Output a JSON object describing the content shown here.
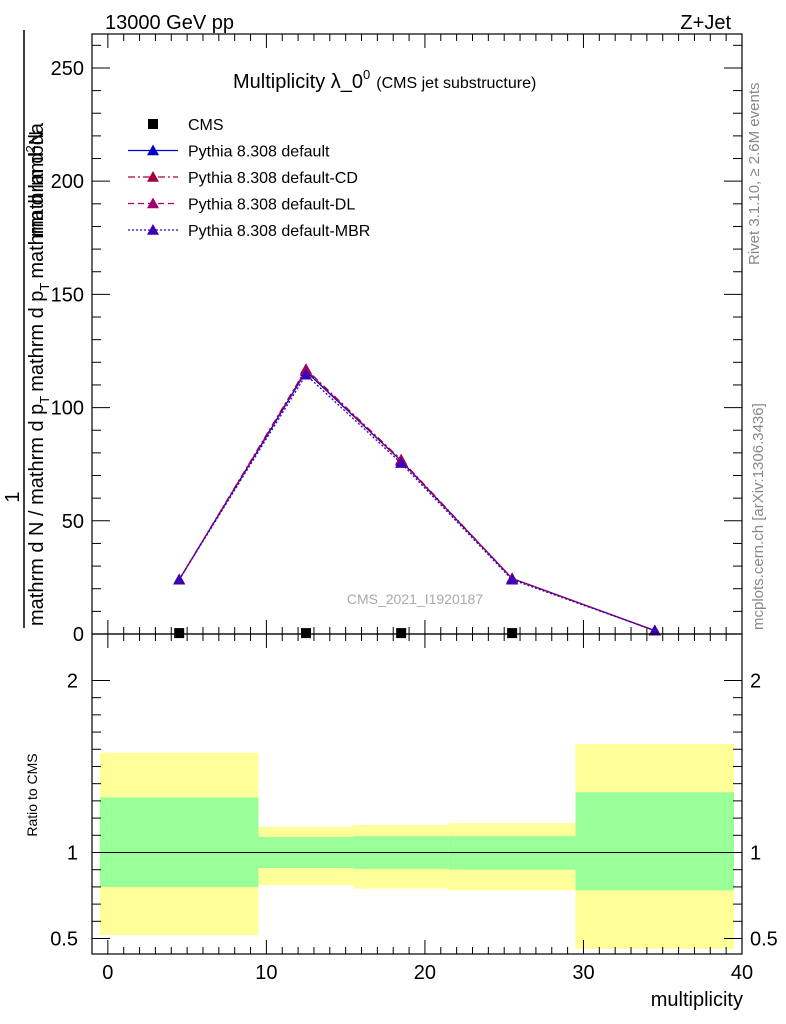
{
  "header": {
    "left": "13000 GeV pp",
    "right": "Z+Jet"
  },
  "side_labels": {
    "rivet": "Rivet 3.1.10, ≥ 2.6M events",
    "mcplots": "mcplots.cern.ch [arXiv:1306.3436]"
  },
  "chart_data": [
    {
      "type": "line",
      "title_main": "Multiplicity λ_0",
      "title_sup": "0",
      "title_sub": "(CMS jet substructure)",
      "ylabel": {
        "numerator": "1",
        "denominator": "mathrm d N / mathrm d p",
        "denominator_sub": "T",
        "rest": "mathrm d p",
        "rest_sub": "T",
        "rest2": "mathrm d lambda",
        "top": "mathrm d",
        "top_sup": "2",
        "top2": "N"
      },
      "watermark": "CMS_2021_I1920187",
      "xlim": [
        -1,
        40
      ],
      "ylim": [
        0,
        265
      ],
      "yticks": [
        0,
        50,
        100,
        150,
        200,
        250
      ],
      "legend_position": "top-left",
      "series": [
        {
          "name": "CMS",
          "style": "marker",
          "color": "#000000",
          "x": [
            4.5,
            12.5,
            18.5,
            25.5
          ],
          "y": [
            0.4,
            0.4,
            0.4,
            0.4
          ]
        },
        {
          "name": "Pythia 8.308 default",
          "style": "solid",
          "color": "#0000cc",
          "x": [
            4.5,
            12.5,
            18.5,
            25.5,
            34.5
          ],
          "y": [
            24,
            116,
            76.5,
            24.5,
            1.5
          ]
        },
        {
          "name": "Pythia 8.308 default-CD",
          "style": "dashdot",
          "color": "#a0003c",
          "x": [
            4.5,
            12.5,
            18.5,
            25.5,
            34.5
          ],
          "y": [
            24,
            117,
            77,
            24.5,
            1.5
          ]
        },
        {
          "name": "Pythia 8.308 default-DL",
          "style": "dashed",
          "color": "#a0006e",
          "x": [
            4.5,
            12.5,
            18.5,
            25.5,
            34.5
          ],
          "y": [
            24,
            116.5,
            76.5,
            24.5,
            1.5
          ]
        },
        {
          "name": "Pythia 8.308 default-MBR",
          "style": "dotted",
          "color": "#3c00b4",
          "x": [
            4.5,
            12.5,
            18.5,
            25.5,
            34.5
          ],
          "y": [
            24,
            114.5,
            75.5,
            24,
            1.5
          ]
        }
      ]
    },
    {
      "type": "area",
      "ylabel": "Ratio to CMS",
      "xlabel": "multiplicity",
      "xlim": [
        -1,
        40
      ],
      "ylim": [
        0.41,
        2.27
      ],
      "yticks": [
        0.5,
        1,
        2
      ],
      "ytick_labels": [
        "0.5",
        "1",
        "2"
      ],
      "xticks": [
        0,
        10,
        20,
        30,
        40
      ],
      "bands": [
        {
          "x0": -0.5,
          "x1": 9.5,
          "inner": [
            0.8,
            1.32
          ],
          "outer": [
            0.52,
            1.58
          ]
        },
        {
          "x0": 9.5,
          "x1": 15.5,
          "inner": [
            0.91,
            1.09
          ],
          "outer": [
            0.81,
            1.15
          ]
        },
        {
          "x0": 15.5,
          "x1": 21.5,
          "inner": [
            0.905,
            1.095
          ],
          "outer": [
            0.79,
            1.16
          ]
        },
        {
          "x0": 21.5,
          "x1": 29.5,
          "inner": [
            0.9,
            1.095
          ],
          "outer": [
            0.78,
            1.17
          ]
        },
        {
          "x0": 29.5,
          "x1": 39.5,
          "inner": [
            0.78,
            1.35
          ],
          "outer": [
            0.44,
            1.63
          ]
        }
      ],
      "colors": {
        "inner": "#99ff99",
        "outer": "#ffff99",
        "line": "#000000"
      }
    }
  ]
}
